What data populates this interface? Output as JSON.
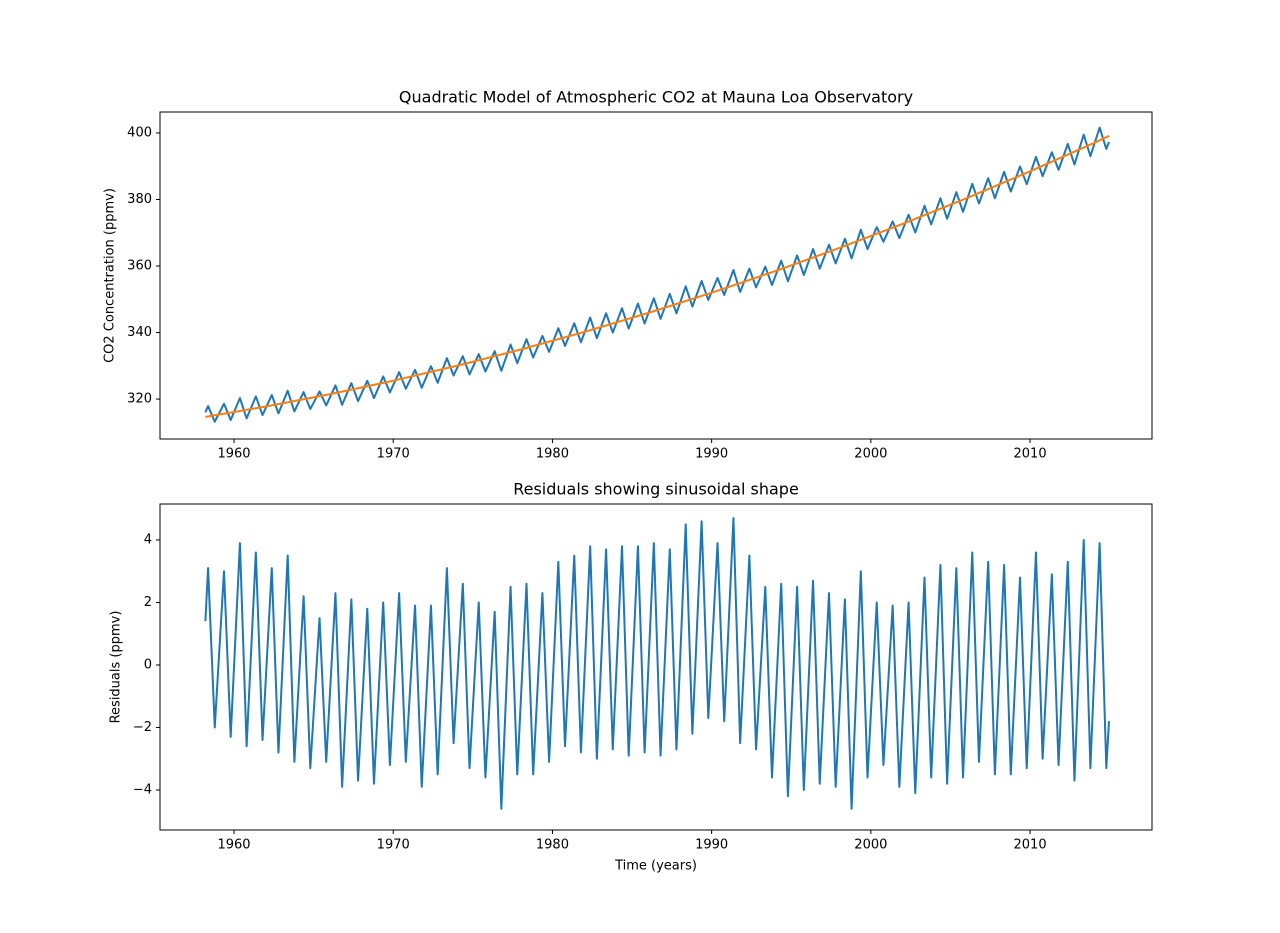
{
  "chart_data": [
    {
      "type": "line",
      "title": "Quadratic Model of Atmospheric CO2 at Mauna Loa Observatory",
      "ylabel": "CO2 Concentration (ppmv)",
      "xlim": [
        1955.35,
        2017.66
      ],
      "xticks": [
        1960,
        1970,
        1980,
        1990,
        2000,
        2010
      ],
      "ylim": [
        308.0,
        406.3
      ],
      "yticks": [
        320,
        340,
        360,
        380,
        400
      ],
      "series": [
        {
          "color": "#1f77b4",
          "x": [
            1958.2,
            1958.37,
            1958.79,
            1959.37,
            1959.79,
            1960.37,
            1960.79,
            1961.37,
            1961.79,
            1962.37,
            1962.79,
            1963.37,
            1963.79,
            1964.37,
            1964.79,
            1965.37,
            1965.79,
            1966.37,
            1966.79,
            1967.37,
            1967.79,
            1968.37,
            1968.79,
            1969.37,
            1969.79,
            1970.37,
            1970.79,
            1971.37,
            1971.79,
            1972.37,
            1972.79,
            1973.37,
            1973.79,
            1974.37,
            1974.79,
            1975.37,
            1975.79,
            1976.37,
            1976.79,
            1977.37,
            1977.79,
            1978.37,
            1978.79,
            1979.37,
            1979.79,
            1980.37,
            1980.79,
            1981.37,
            1981.79,
            1982.37,
            1982.79,
            1983.37,
            1983.79,
            1984.37,
            1984.79,
            1985.37,
            1985.79,
            1986.37,
            1986.79,
            1987.37,
            1987.79,
            1988.37,
            1988.79,
            1989.37,
            1989.79,
            1990.37,
            1990.79,
            1991.37,
            1991.79,
            1992.37,
            1992.79,
            1993.37,
            1993.79,
            1994.37,
            1994.79,
            1995.37,
            1995.79,
            1996.37,
            1996.79,
            1997.37,
            1997.79,
            1998.37,
            1998.79,
            1999.37,
            1999.79,
            2000.37,
            2000.79,
            2001.37,
            2001.79,
            2002.37,
            2002.79,
            2003.37,
            2003.79,
            2004.37,
            2004.79,
            2005.37,
            2005.79,
            2006.37,
            2006.79,
            2007.37,
            2007.79,
            2008.37,
            2008.79,
            2009.37,
            2009.79,
            2010.37,
            2010.79,
            2011.37,
            2011.79,
            2012.37,
            2012.79,
            2013.37,
            2013.79,
            2014.37,
            2014.79,
            2014.96
          ],
          "values": [
            316.0,
            317.9,
            313.2,
            318.6,
            313.7,
            320.3,
            314.2,
            320.8,
            315.2,
            321.2,
            315.7,
            322.5,
            316.3,
            322.1,
            317.0,
            322.3,
            318.1,
            324.1,
            318.3,
            324.8,
            319.4,
            325.5,
            320.3,
            326.8,
            322.0,
            328.1,
            323.1,
            328.8,
            323.4,
            329.9,
            324.9,
            332.3,
            327.1,
            332.9,
            327.4,
            333.5,
            328.3,
            334.4,
            328.5,
            336.4,
            330.8,
            338.0,
            332.5,
            339.0,
            334.2,
            341.3,
            336.0,
            342.8,
            337.1,
            344.5,
            338.3,
            345.8,
            340.0,
            347.3,
            341.2,
            348.7,
            342.7,
            350.3,
            344.1,
            351.6,
            345.8,
            353.9,
            347.8,
            355.5,
            349.8,
            356.4,
            351.3,
            358.8,
            352.2,
            359.2,
            353.6,
            359.8,
            354.3,
            361.6,
            355.4,
            363.2,
            357.3,
            365.1,
            359.2,
            366.4,
            360.8,
            368.2,
            362.3,
            370.9,
            365.1,
            371.7,
            367.3,
            373.4,
            368.4,
            375.4,
            370.1,
            378.1,
            372.5,
            380.4,
            374.2,
            382.2,
            376.3,
            384.7,
            378.8,
            386.4,
            380.4,
            388.3,
            382.4,
            389.9,
            384.6,
            392.8,
            387.0,
            394.2,
            388.9,
            396.7,
            390.5,
            399.5,
            393.0,
            401.6,
            395.2,
            397.3
          ]
        },
        {
          "color": "#ff7f0e",
          "x": [
            1958.2,
            1962,
            1966,
            1970,
            1974,
            1978,
            1982,
            1986,
            1990,
            1994,
            1998,
            2002,
            2006,
            2010,
            2014,
            2014.96
          ],
          "values": [
            314.66,
            317.77,
            321.45,
            325.53,
            330.02,
            334.9,
            340.19,
            345.88,
            351.98,
            358.48,
            365.38,
            372.68,
            380.37,
            388.47,
            396.97,
            399.1
          ]
        }
      ]
    },
    {
      "type": "line",
      "title": "Residuals showing sinusoidal shape",
      "ylabel": "Residuals (ppmv)",
      "xlabel": "Time (years)",
      "xlim": [
        1955.35,
        2017.66
      ],
      "xticks": [
        1960,
        1970,
        1980,
        1990,
        2000,
        2010
      ],
      "ylim": [
        -5.28,
        5.15
      ],
      "yticks": [
        {
          "value": -4,
          "label": "−4"
        },
        {
          "value": -2,
          "label": "−2"
        },
        0,
        2,
        4
      ],
      "series": [
        {
          "color": "#1f77b4",
          "x": [
            1958.2,
            1958.37,
            1958.79,
            1959.37,
            1959.79,
            1960.37,
            1960.79,
            1961.37,
            1961.79,
            1962.37,
            1962.79,
            1963.37,
            1963.79,
            1964.37,
            1964.79,
            1965.37,
            1965.79,
            1966.37,
            1966.79,
            1967.37,
            1967.79,
            1968.37,
            1968.79,
            1969.37,
            1969.79,
            1970.37,
            1970.79,
            1971.37,
            1971.79,
            1972.37,
            1972.79,
            1973.37,
            1973.79,
            1974.37,
            1974.79,
            1975.37,
            1975.79,
            1976.37,
            1976.79,
            1977.37,
            1977.79,
            1978.37,
            1978.79,
            1979.37,
            1979.79,
            1980.37,
            1980.79,
            1981.37,
            1981.79,
            1982.37,
            1982.79,
            1983.37,
            1983.79,
            1984.37,
            1984.79,
            1985.37,
            1985.79,
            1986.37,
            1986.79,
            1987.37,
            1987.79,
            1988.37,
            1988.79,
            1989.37,
            1989.79,
            1990.37,
            1990.79,
            1991.37,
            1991.79,
            1992.37,
            1992.79,
            1993.37,
            1993.79,
            1994.37,
            1994.79,
            1995.37,
            1995.79,
            1996.37,
            1996.79,
            1997.37,
            1997.79,
            1998.37,
            1998.79,
            1999.37,
            1999.79,
            2000.37,
            2000.79,
            2001.37,
            2001.79,
            2002.37,
            2002.79,
            2003.37,
            2003.79,
            2004.37,
            2004.79,
            2005.37,
            2005.79,
            2006.37,
            2006.79,
            2007.37,
            2007.79,
            2008.37,
            2008.79,
            2009.37,
            2009.79,
            2010.37,
            2010.79,
            2011.37,
            2011.79,
            2012.37,
            2012.79,
            2013.37,
            2013.79,
            2014.37,
            2014.79,
            2014.96
          ],
          "values": [
            1.4,
            3.1,
            -2.0,
            3.0,
            -2.3,
            3.9,
            -2.6,
            3.6,
            -2.4,
            3.1,
            -2.8,
            3.5,
            -3.1,
            2.2,
            -3.3,
            1.5,
            -3.1,
            2.3,
            -3.9,
            2.1,
            -3.7,
            1.8,
            -3.8,
            2.0,
            -3.2,
            2.3,
            -3.1,
            1.9,
            -3.9,
            1.9,
            -3.5,
            3.1,
            -2.5,
            2.6,
            -3.3,
            2.0,
            -3.6,
            1.7,
            -4.6,
            2.5,
            -3.5,
            2.6,
            -3.5,
            2.3,
            -3.1,
            3.3,
            -2.6,
            3.5,
            -2.8,
            3.8,
            -3.0,
            3.7,
            -2.7,
            3.8,
            -2.9,
            3.8,
            -2.8,
            3.9,
            -2.9,
            3.7,
            -2.7,
            4.5,
            -2.2,
            4.6,
            -1.7,
            3.9,
            -1.8,
            4.7,
            -2.5,
            3.5,
            -2.7,
            2.5,
            -3.6,
            2.6,
            -4.2,
            2.5,
            -4.0,
            2.7,
            -3.8,
            2.3,
            -3.9,
            2.1,
            -4.6,
            3.0,
            -3.6,
            2.0,
            -3.2,
            1.9,
            -3.9,
            2.0,
            -4.1,
            2.8,
            -3.6,
            3.2,
            -3.8,
            3.1,
            -3.6,
            3.6,
            -3.1,
            3.3,
            -3.5,
            3.2,
            -3.5,
            2.8,
            -3.3,
            3.6,
            -3.0,
            2.9,
            -3.2,
            3.3,
            -3.7,
            4.0,
            -3.3,
            3.9,
            -3.3,
            -1.8
          ]
        }
      ]
    }
  ]
}
